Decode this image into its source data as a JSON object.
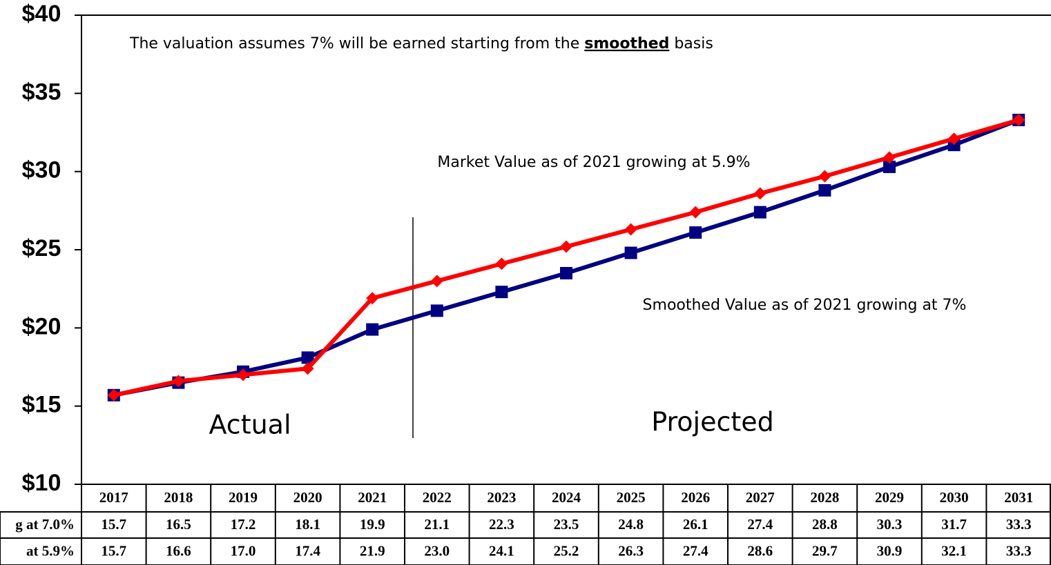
{
  "chart_data": {
    "type": "line",
    "categories": [
      "2017",
      "2018",
      "2019",
      "2020",
      "2021",
      "2022",
      "2023",
      "2024",
      "2025",
      "2026",
      "2027",
      "2028",
      "2029",
      "2030",
      "2031"
    ],
    "series": [
      {
        "name": "g at 7.0%",
        "color": "#000080",
        "marker": "square",
        "values": [
          15.7,
          16.5,
          17.2,
          18.1,
          19.9,
          21.1,
          22.3,
          23.5,
          24.8,
          26.1,
          27.4,
          28.8,
          30.3,
          31.7,
          33.3
        ],
        "value_labels": [
          "15.7",
          "16.5",
          "17.2",
          "18.1",
          "19.9",
          "21.1",
          "22.3",
          "23.5",
          "24.8",
          "26.1",
          "27.4",
          "28.8",
          "30.3",
          "31.7",
          "33.3"
        ]
      },
      {
        "name": "at 5.9%",
        "color": "#ff0000",
        "marker": "diamond",
        "values": [
          15.7,
          16.6,
          17.0,
          17.4,
          21.9,
          23.0,
          24.1,
          25.2,
          26.3,
          27.4,
          28.6,
          29.7,
          30.9,
          32.1,
          33.3
        ],
        "value_labels": [
          "15.7",
          "16.6",
          "17.0",
          "17.4",
          "21.9",
          "23.0",
          "24.1",
          "25.2",
          "26.3",
          "27.4",
          "28.6",
          "29.7",
          "30.9",
          "32.1",
          "33.3"
        ]
      }
    ],
    "ylim": [
      10,
      40
    ],
    "yticks": [
      {
        "value": 10,
        "label": "$10"
      },
      {
        "value": 15,
        "label": "$15"
      },
      {
        "value": 20,
        "label": "$20"
      },
      {
        "value": 25,
        "label": "$25"
      },
      {
        "value": 30,
        "label": "$30"
      },
      {
        "value": 35,
        "label": "$35"
      },
      {
        "value": 40,
        "label": "$40"
      }
    ],
    "annotations": {
      "note": [
        "The valuation assumes 7% will be earned starting from the ",
        "smoothed",
        " basis"
      ],
      "market": "Market Value as of 2021 growing at 5.9%",
      "smoothed": "Smoothed Value as of 2021 growing at 7%",
      "actual": "Actual",
      "projected": "Projected"
    }
  }
}
